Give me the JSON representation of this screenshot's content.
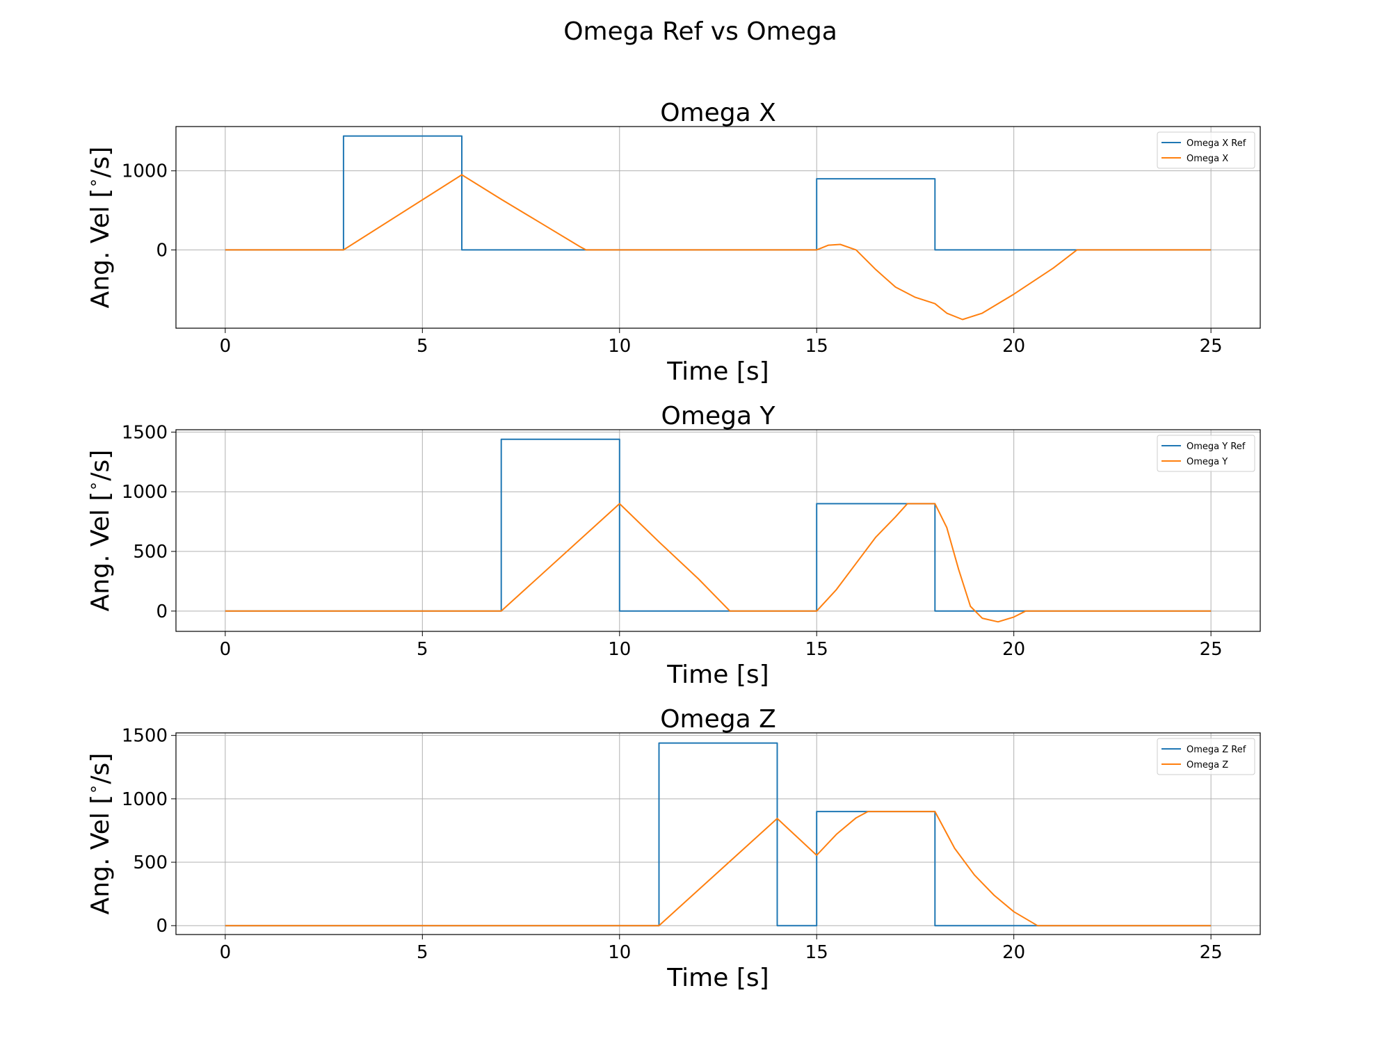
{
  "title": "Omega Ref vs Omega",
  "chart_data": [
    {
      "type": "line",
      "title": "Omega X",
      "xlabel": "Time [s]",
      "ylabel": "Ang. Vel [$^\\circ$/s]",
      "xlim": [
        -1.25,
        26.25
      ],
      "ylim": [
        -990,
        1560
      ],
      "xticks": [
        0,
        5,
        10,
        15,
        20,
        25
      ],
      "yticks": [
        0,
        1000
      ],
      "grid": true,
      "legend_position": "top-right",
      "series": [
        {
          "name": "Omega X Ref",
          "color": "#1f77b4",
          "x": [
            0,
            3,
            3,
            6,
            6,
            15,
            15,
            18,
            18,
            25
          ],
          "y": [
            0,
            0,
            1440,
            1440,
            0,
            0,
            900,
            900,
            0,
            0
          ]
        },
        {
          "name": "Omega X",
          "color": "#ff7f0e",
          "x": [
            0,
            3,
            6,
            7,
            8,
            9,
            9.15,
            15,
            15.3,
            15.6,
            16,
            16.5,
            17,
            17.5,
            18,
            18.3,
            18.7,
            19.2,
            20,
            21,
            21.6,
            25
          ],
          "y": [
            0,
            0,
            950,
            640,
            340,
            40,
            0,
            0,
            60,
            70,
            0,
            -250,
            -470,
            -600,
            -680,
            -800,
            -880,
            -800,
            -560,
            -230,
            0,
            0
          ]
        }
      ]
    },
    {
      "type": "line",
      "title": "Omega Y",
      "xlabel": "Time [s]",
      "ylabel": "Ang. Vel [$^\\circ$/s]",
      "xlim": [
        -1.25,
        26.25
      ],
      "ylim": [
        -170,
        1520
      ],
      "xticks": [
        0,
        5,
        10,
        15,
        20,
        25
      ],
      "yticks": [
        0,
        500,
        1000,
        1500
      ],
      "grid": true,
      "legend_position": "top-right",
      "series": [
        {
          "name": "Omega Y Ref",
          "color": "#1f77b4",
          "x": [
            0,
            7,
            7,
            10,
            10,
            15,
            15,
            18,
            18,
            25
          ],
          "y": [
            0,
            0,
            1440,
            1440,
            0,
            0,
            900,
            900,
            0,
            0
          ]
        },
        {
          "name": "Omega Y",
          "color": "#ff7f0e",
          "x": [
            0,
            7,
            10,
            11,
            12,
            12.8,
            15,
            15.5,
            16,
            16.5,
            17,
            17.3,
            18,
            18.3,
            18.6,
            18.9,
            19.2,
            19.6,
            20,
            20.3,
            25
          ],
          "y": [
            0,
            0,
            900,
            580,
            270,
            0,
            0,
            180,
            400,
            620,
            790,
            900,
            900,
            700,
            350,
            40,
            -60,
            -90,
            -50,
            0,
            0
          ]
        }
      ]
    },
    {
      "type": "line",
      "title": "Omega Z",
      "xlabel": "Time [s]",
      "ylabel": "Ang. Vel [$^\\circ$/s]",
      "xlim": [
        -1.25,
        26.25
      ],
      "ylim": [
        -70,
        1520
      ],
      "xticks": [
        0,
        5,
        10,
        15,
        20,
        25
      ],
      "yticks": [
        0,
        500,
        1000,
        1500
      ],
      "grid": true,
      "legend_position": "top-right",
      "series": [
        {
          "name": "Omega Z Ref",
          "color": "#1f77b4",
          "x": [
            0,
            11,
            11,
            14,
            14,
            15,
            15,
            18,
            18,
            25
          ],
          "y": [
            0,
            0,
            1440,
            1440,
            0,
            0,
            900,
            900,
            0,
            0
          ]
        },
        {
          "name": "Omega Z",
          "color": "#ff7f0e",
          "x": [
            0,
            11,
            14,
            15,
            15.5,
            16,
            16.3,
            18,
            18.5,
            19,
            19.5,
            20,
            20.6,
            25
          ],
          "y": [
            0,
            0,
            845,
            555,
            720,
            850,
            900,
            900,
            610,
            400,
            240,
            110,
            0,
            0
          ]
        }
      ]
    }
  ]
}
